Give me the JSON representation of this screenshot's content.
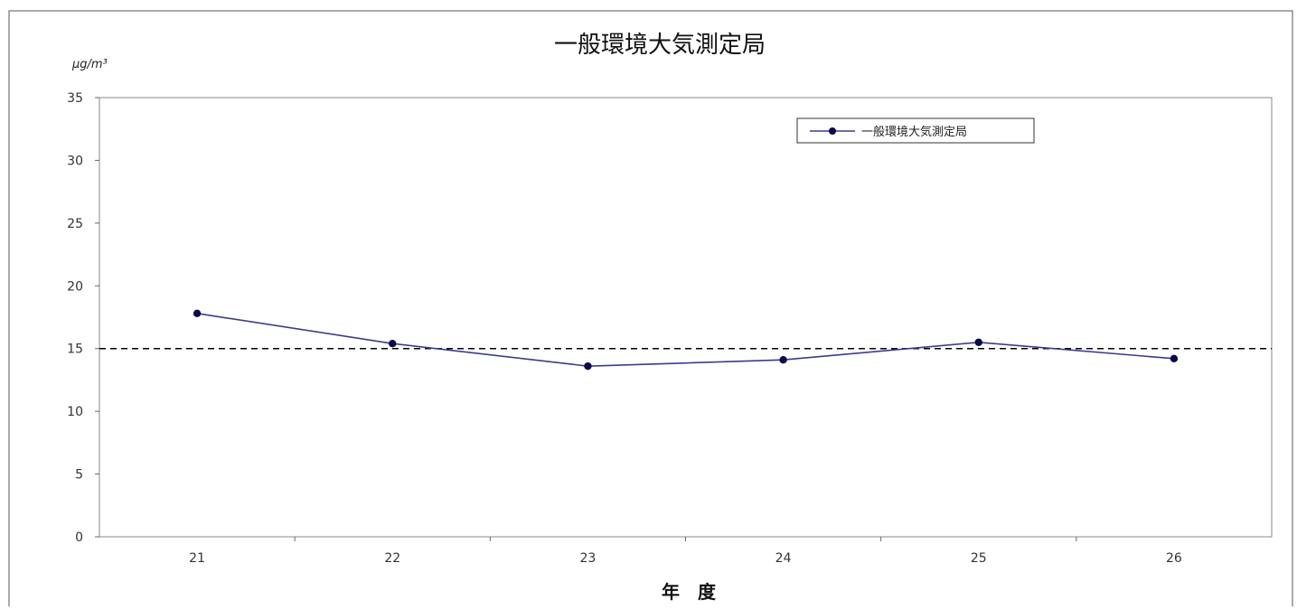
{
  "chart_data": {
    "type": "line",
    "title": "一般環境大気測定局",
    "unit_label": "μg/m³",
    "xlabel": "年　度",
    "ylabel": "",
    "categories": [
      "21",
      "22",
      "23",
      "24",
      "25",
      "26"
    ],
    "series": [
      {
        "name": "一般環境大気測定局",
        "values": [
          17.8,
          15.4,
          13.6,
          14.1,
          15.5,
          14.2
        ],
        "color": "#3b3b8f",
        "marker_color": "#0a0a4a"
      }
    ],
    "ylim": [
      0,
      35
    ],
    "yticks": [
      "0",
      "5",
      "10",
      "15",
      "20",
      "25",
      "30",
      "35"
    ],
    "reference_line": {
      "value": 15,
      "style": "dashed",
      "color": "#000000"
    },
    "legend_position": "top-right",
    "grid": false
  }
}
